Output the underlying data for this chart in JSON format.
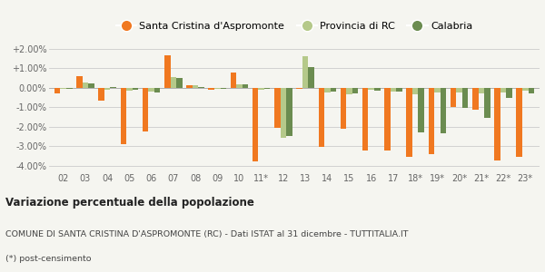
{
  "categories": [
    "02",
    "03",
    "04",
    "05",
    "06",
    "07",
    "08",
    "09",
    "10",
    "11*",
    "12",
    "13",
    "14",
    "15",
    "16",
    "17",
    "18*",
    "19*",
    "20*",
    "21*",
    "22*",
    "23*"
  ],
  "santa_cristina": [
    -0.3,
    0.6,
    -0.65,
    -2.9,
    -2.25,
    1.65,
    0.1,
    -0.1,
    0.75,
    -3.8,
    -2.05,
    -0.05,
    -3.05,
    -2.1,
    -3.25,
    -3.25,
    -3.55,
    -3.4,
    -1.0,
    -1.15,
    -3.75,
    -3.55
  ],
  "provincia_rc": [
    -0.05,
    0.25,
    -0.1,
    -0.15,
    -0.2,
    0.55,
    0.1,
    -0.05,
    0.15,
    -0.1,
    -2.6,
    1.6,
    -0.25,
    -0.35,
    -0.1,
    -0.2,
    -0.35,
    -0.25,
    -0.25,
    -0.3,
    -0.25,
    -0.15
  ],
  "calabria": [
    -0.05,
    0.2,
    0.05,
    -0.1,
    -0.25,
    0.5,
    0.05,
    -0.05,
    0.15,
    -0.05,
    -2.5,
    1.05,
    -0.2,
    -0.3,
    -0.15,
    -0.2,
    -2.3,
    -2.35,
    -1.05,
    -1.55,
    -0.55,
    -0.3
  ],
  "color_santa": "#f07820",
  "color_provincia": "#b5c98a",
  "color_calabria": "#6b8c50",
  "title_bold": "Variazione percentuale della popolazione",
  "subtitle": "COMUNE DI SANTA CRISTINA D'ASPROMONTE (RC) - Dati ISTAT al 31 dicembre - TUTTITALIA.IT",
  "footnote": "(*) post-censimento",
  "ylim": [
    -4.3,
    2.4
  ],
  "yticks": [
    -4.0,
    -3.0,
    -2.0,
    -1.0,
    0.0,
    1.0,
    2.0
  ],
  "ytick_labels": [
    "-4.00%",
    "-3.00%",
    "-2.00%",
    "-1.00%",
    "0.00%",
    "+1.00%",
    "+2.00%"
  ],
  "legend_labels": [
    "Santa Cristina d'Aspromonte",
    "Provincia di RC",
    "Calabria"
  ],
  "bg_color": "#f5f5f0",
  "bar_width": 0.27
}
